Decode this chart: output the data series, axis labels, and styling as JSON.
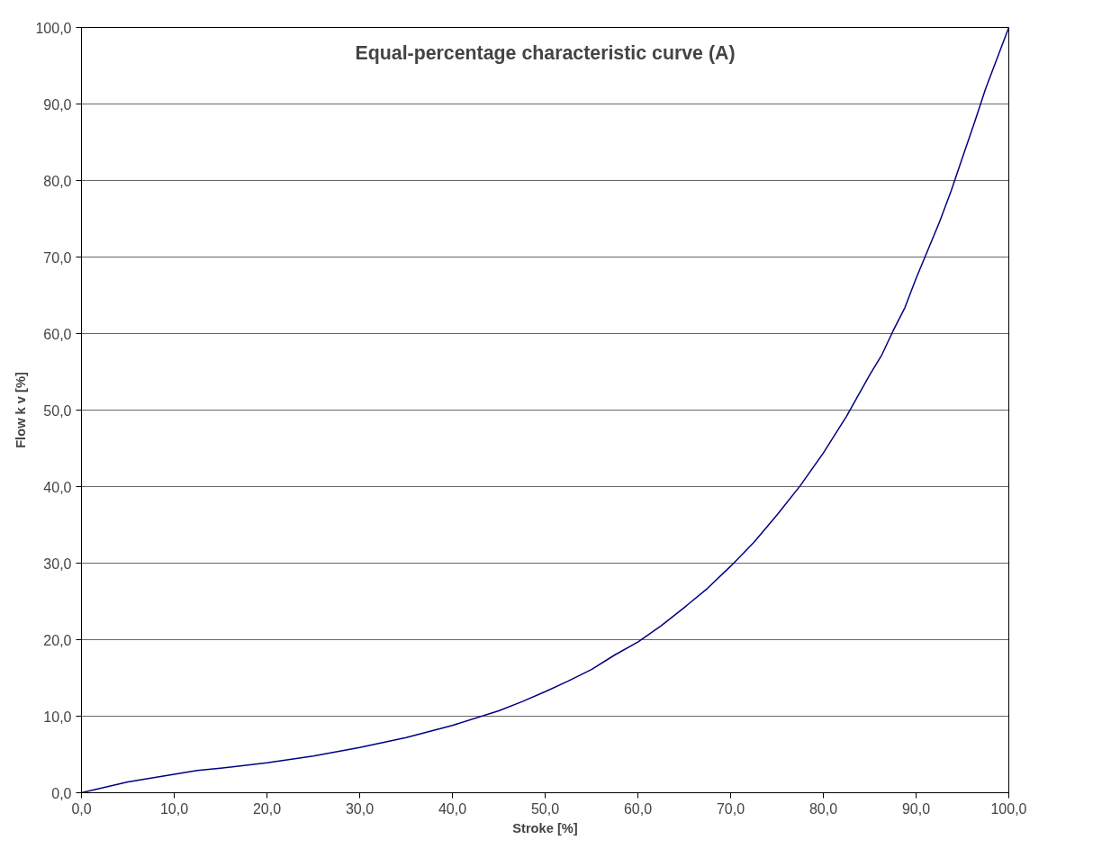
{
  "chart_data": {
    "type": "line",
    "title": "Equal-percentage characteristic curve (A)",
    "xlabel": "Stroke [%]",
    "ylabel": "Flow k v [%]",
    "x": [
      0,
      5,
      10,
      12.5,
      15,
      20,
      25,
      30,
      35,
      40,
      45,
      47.5,
      50,
      52.5,
      55,
      57.5,
      60,
      62.5,
      65,
      67.5,
      70,
      72.5,
      75,
      77.5,
      80,
      82.5,
      85,
      86.3,
      87.5,
      88.8,
      90,
      91.3,
      92.5,
      93.8,
      95,
      96.3,
      97.5,
      100
    ],
    "series": [
      {
        "color": "#000080",
        "values": [
          0,
          1.4,
          2.4,
          2.9,
          3.2,
          3.9,
          4.8,
          5.9,
          7.2,
          8.8,
          10.7,
          11.9,
          13.2,
          14.6,
          16.1,
          18.0,
          19.7,
          21.8,
          24.2,
          26.7,
          29.6,
          32.7,
          36.3,
          40.1,
          44.4,
          49.2,
          54.6,
          57.2,
          60.3,
          63.4,
          67.2,
          71.0,
          74.5,
          78.7,
          83.0,
          87.6,
          92.0,
          100
        ]
      }
    ],
    "xlim": [
      0,
      100
    ],
    "ylim": [
      0,
      100
    ],
    "xticks": [
      {
        "value": 0,
        "label": "0,0"
      },
      {
        "value": 10,
        "label": "10,0"
      },
      {
        "value": 20,
        "label": "20,0"
      },
      {
        "value": 30,
        "label": "30,0"
      },
      {
        "value": 40,
        "label": "40,0"
      },
      {
        "value": 50,
        "label": "50,0"
      },
      {
        "value": 60,
        "label": "60,0"
      },
      {
        "value": 70,
        "label": "70,0"
      },
      {
        "value": 80,
        "label": "80,0"
      },
      {
        "value": 90,
        "label": "90,0"
      },
      {
        "value": 100,
        "label": "100,0"
      }
    ],
    "yticks": [
      {
        "value": 0,
        "label": "0,0"
      },
      {
        "value": 10,
        "label": "10,0"
      },
      {
        "value": 20,
        "label": "20,0"
      },
      {
        "value": 30,
        "label": "30,0"
      },
      {
        "value": 40,
        "label": "40,0"
      },
      {
        "value": 50,
        "label": "50,0"
      },
      {
        "value": 60,
        "label": "60,0"
      },
      {
        "value": 70,
        "label": "70,0"
      },
      {
        "value": 80,
        "label": "80,0"
      },
      {
        "value": 90,
        "label": "90,0"
      },
      {
        "value": 100,
        "label": "100,0"
      }
    ],
    "grid": "y",
    "marker": "none",
    "line_style": "solid"
  }
}
